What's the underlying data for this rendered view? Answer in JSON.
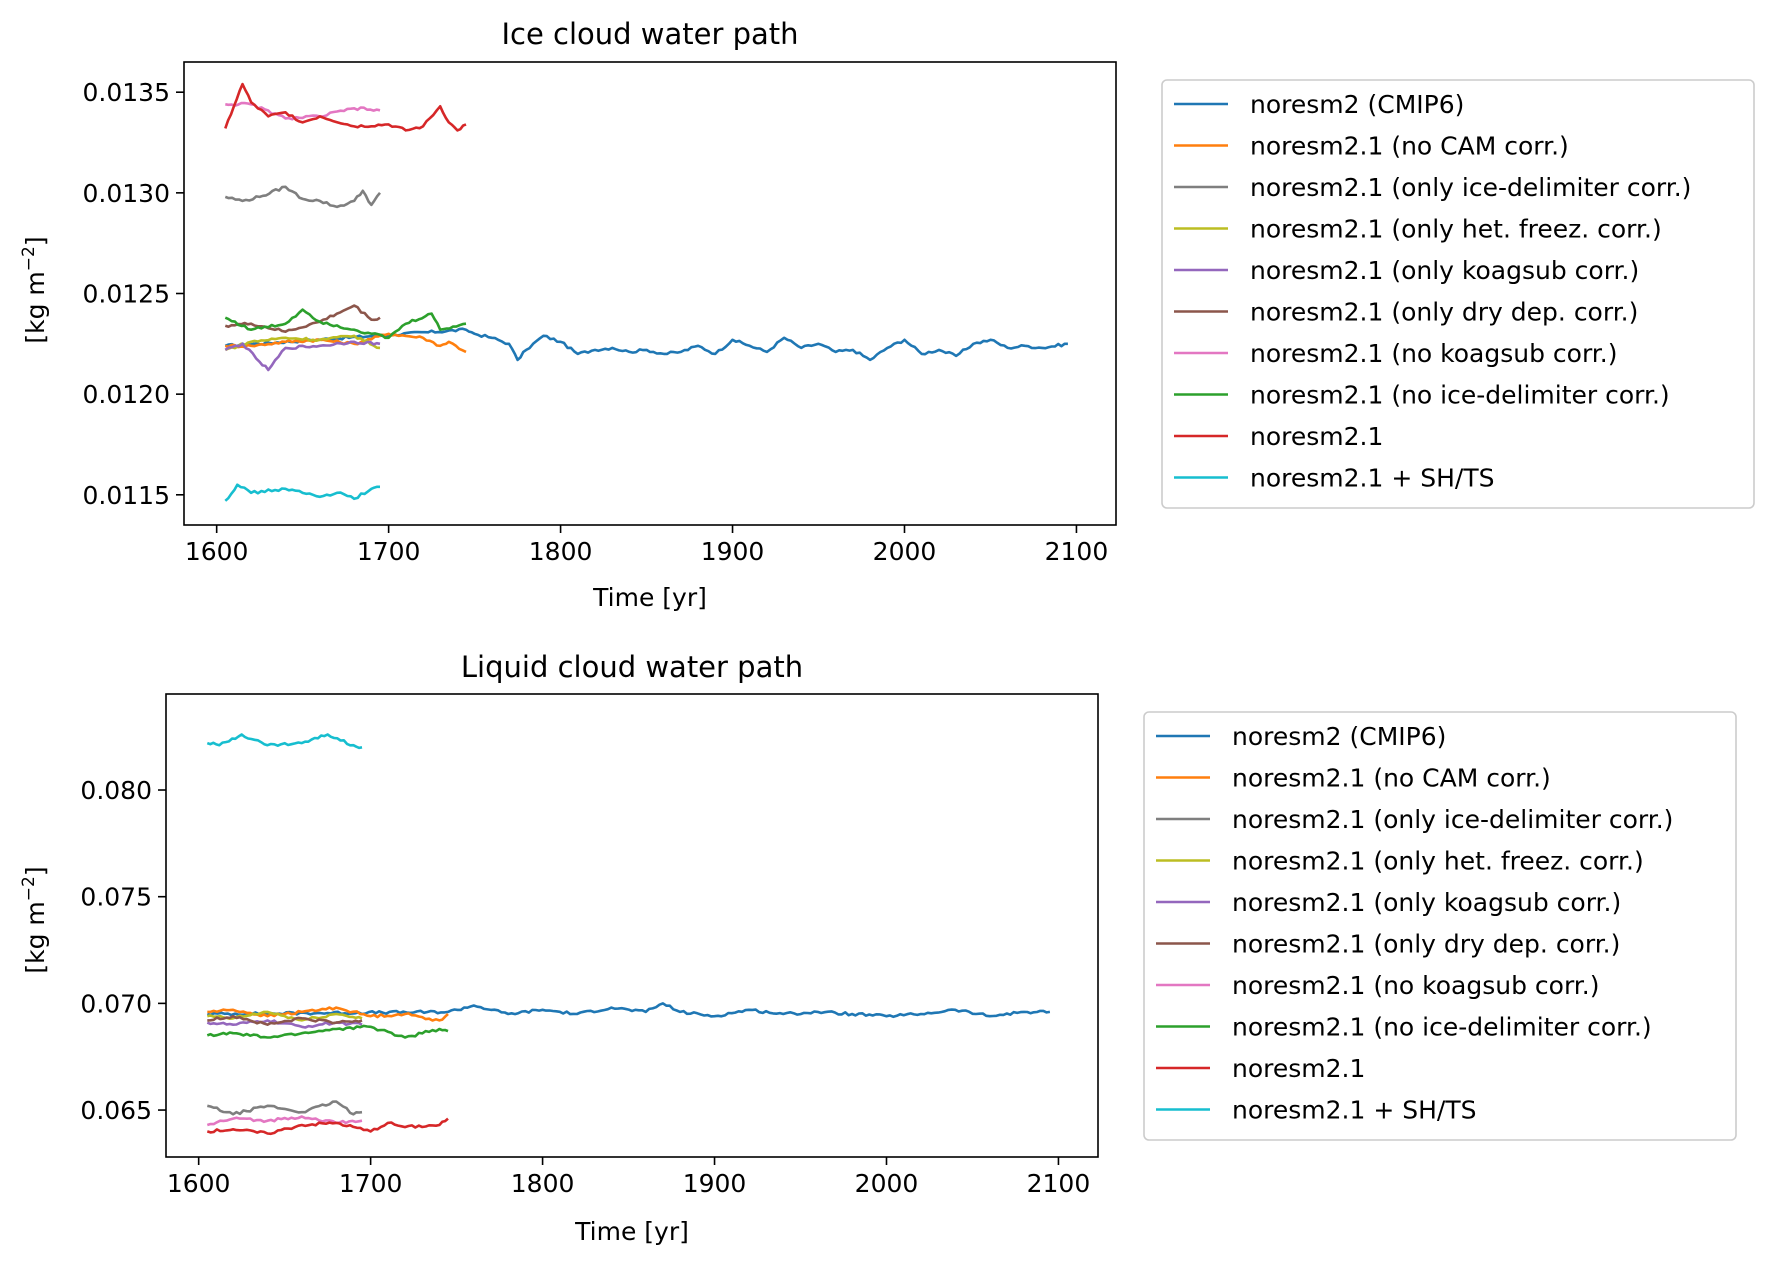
{
  "chart_data": [
    {
      "type": "line",
      "title": "Ice cloud water path",
      "xlabel": "Time [yr]",
      "ylabel": "[kg m$^{-2}$]",
      "ylabel_text": "[kg m",
      "ylabel_sup": "−2",
      "ylabel_close": "]",
      "xlim": [
        1581,
        2123
      ],
      "ylim": [
        0.01135,
        0.01365
      ],
      "xticks": [
        1600,
        1700,
        1800,
        1900,
        2000,
        2100
      ],
      "xtick_labels": [
        "1600",
        "1700",
        "1800",
        "1900",
        "2000",
        "2100"
      ],
      "yticks": [
        0.0115,
        0.012,
        0.0125,
        0.013,
        0.0135
      ],
      "ytick_labels": [
        "0.0115",
        "0.0120",
        "0.0125",
        "0.0130",
        "0.0135"
      ],
      "grid": false,
      "legend_position": "outside-right",
      "series": [
        {
          "name": "noresm2 (CMIP6)",
          "color": "#1f77b4",
          "x": [
            1605,
            1745,
            1750,
            1760,
            1770,
            1775,
            1780,
            1790,
            1800,
            1810,
            1820,
            1830,
            1840,
            1850,
            1860,
            1870,
            1880,
            1890,
            1900,
            1910,
            1920,
            1930,
            1940,
            1950,
            1960,
            1970,
            1980,
            1990,
            2000,
            2010,
            2020,
            2030,
            2040,
            2050,
            2060,
            2070,
            2080,
            2095
          ],
          "y": [
            0.01224,
            0.01232,
            0.0123,
            0.01228,
            0.01225,
            0.01217,
            0.01222,
            0.01229,
            0.01226,
            0.0122,
            0.01222,
            0.01223,
            0.01221,
            0.01222,
            0.0122,
            0.01221,
            0.01224,
            0.0122,
            0.01227,
            0.01224,
            0.01221,
            0.01228,
            0.01223,
            0.01225,
            0.01221,
            0.01222,
            0.01217,
            0.01223,
            0.01227,
            0.0122,
            0.01222,
            0.01219,
            0.01225,
            0.01227,
            0.01223,
            0.01224,
            0.01223,
            0.01225
          ]
        },
        {
          "name": "noresm2.1 (no CAM corr.)",
          "color": "#ff7f0e",
          "x": [
            1605,
            1620,
            1640,
            1660,
            1680,
            1700,
            1720,
            1730,
            1735,
            1745
          ],
          "y": [
            0.01224,
            0.01224,
            0.01226,
            0.01227,
            0.01225,
            0.0123,
            0.01228,
            0.01224,
            0.01226,
            0.01221
          ]
        },
        {
          "name": "noresm2.1 (only ice-delimiter corr.)",
          "color": "#7f7f7f",
          "x": [
            1605,
            1615,
            1625,
            1640,
            1650,
            1660,
            1670,
            1680,
            1685,
            1690,
            1695
          ],
          "y": [
            0.01298,
            0.01296,
            0.01298,
            0.01303,
            0.01297,
            0.01296,
            0.01293,
            0.01296,
            0.01301,
            0.01294,
            0.013
          ]
        },
        {
          "name": "noresm2.1 (only het. freez. corr.)",
          "color": "#bcbd22",
          "x": [
            1605,
            1620,
            1640,
            1660,
            1680,
            1695
          ],
          "y": [
            0.01222,
            0.01226,
            0.01228,
            0.01227,
            0.01229,
            0.01223
          ]
        },
        {
          "name": "noresm2.1 (only koagsub corr.)",
          "color": "#9467bd",
          "x": [
            1605,
            1615,
            1625,
            1630,
            1640,
            1660,
            1680,
            1695
          ],
          "y": [
            0.01222,
            0.01225,
            0.01216,
            0.01212,
            0.01223,
            0.01224,
            0.01226,
            0.01225
          ]
        },
        {
          "name": "noresm2.1 (only dry dep. corr.)",
          "color": "#8c564b",
          "x": [
            1605,
            1620,
            1640,
            1660,
            1670,
            1680,
            1690,
            1695
          ],
          "y": [
            0.01234,
            0.01235,
            0.01231,
            0.01236,
            0.0124,
            0.01244,
            0.01237,
            0.01238
          ]
        },
        {
          "name": "noresm2.1 (no koagsub corr.)",
          "color": "#e377c2",
          "x": [
            1605,
            1620,
            1640,
            1660,
            1680,
            1695
          ],
          "y": [
            0.01344,
            0.01344,
            0.01337,
            0.01338,
            0.01342,
            0.01341
          ]
        },
        {
          "name": "noresm2.1 (no ice-delimiter corr.)",
          "color": "#2ca02c",
          "x": [
            1605,
            1620,
            1640,
            1650,
            1660,
            1680,
            1700,
            1710,
            1725,
            1730,
            1745
          ],
          "y": [
            0.01238,
            0.01232,
            0.01235,
            0.01242,
            0.01236,
            0.01232,
            0.01228,
            0.01235,
            0.0124,
            0.01232,
            0.01235
          ]
        },
        {
          "name": "noresm2.1",
          "color": "#d62728",
          "x": [
            1605,
            1610,
            1615,
            1620,
            1630,
            1640,
            1650,
            1660,
            1680,
            1700,
            1710,
            1720,
            1730,
            1735,
            1740,
            1745
          ],
          "y": [
            0.01332,
            0.01343,
            0.01354,
            0.01345,
            0.01338,
            0.0134,
            0.01335,
            0.01338,
            0.01333,
            0.01334,
            0.01331,
            0.01333,
            0.01343,
            0.01335,
            0.01331,
            0.01334
          ]
        },
        {
          "name": "noresm2.1 + SH/TS",
          "color": "#17becf",
          "x": [
            1605,
            1612,
            1620,
            1640,
            1660,
            1670,
            1680,
            1690,
            1695
          ],
          "y": [
            0.01147,
            0.01155,
            0.01151,
            0.01153,
            0.01149,
            0.01151,
            0.01148,
            0.01153,
            0.01154
          ]
        }
      ]
    },
    {
      "type": "line",
      "title": "Liquid cloud water path",
      "xlabel": "Time [yr]",
      "ylabel": "[kg m$^{-2}$]",
      "ylabel_text": "[kg m",
      "ylabel_sup": "−2",
      "ylabel_close": "]",
      "xlim": [
        1581,
        2123
      ],
      "ylim": [
        0.0628,
        0.0845
      ],
      "xticks": [
        1600,
        1700,
        1800,
        1900,
        2000,
        2100
      ],
      "xtick_labels": [
        "1600",
        "1700",
        "1800",
        "1900",
        "2000",
        "2100"
      ],
      "yticks": [
        0.065,
        0.07,
        0.075,
        0.08
      ],
      "ytick_labels": [
        "0.065",
        "0.070",
        "0.075",
        "0.080"
      ],
      "grid": false,
      "legend_position": "outside-right",
      "series": [
        {
          "name": "noresm2 (CMIP6)",
          "color": "#1f77b4",
          "x": [
            1605,
            1745,
            1760,
            1780,
            1800,
            1820,
            1840,
            1860,
            1870,
            1880,
            1900,
            1920,
            1940,
            1960,
            1980,
            2000,
            2020,
            2040,
            2060,
            2080,
            2095
          ],
          "y": [
            0.0695,
            0.0696,
            0.0699,
            0.0695,
            0.0697,
            0.0695,
            0.0698,
            0.0696,
            0.07,
            0.0696,
            0.0694,
            0.0697,
            0.0695,
            0.0696,
            0.0695,
            0.0694,
            0.0695,
            0.0697,
            0.0694,
            0.0696,
            0.0696
          ]
        },
        {
          "name": "noresm2.1 (no CAM corr.)",
          "color": "#ff7f0e",
          "x": [
            1605,
            1620,
            1640,
            1660,
            1680,
            1700,
            1720,
            1740,
            1745
          ],
          "y": [
            0.0696,
            0.0697,
            0.0694,
            0.0696,
            0.0698,
            0.0694,
            0.0695,
            0.0692,
            0.0695
          ]
        },
        {
          "name": "noresm2.1 (only ice-delimiter corr.)",
          "color": "#7f7f7f",
          "x": [
            1605,
            1620,
            1640,
            1660,
            1680,
            1690,
            1695
          ],
          "y": [
            0.0652,
            0.0648,
            0.0652,
            0.0649,
            0.0654,
            0.0648,
            0.0649
          ]
        },
        {
          "name": "noresm2.1 (only het. freez. corr.)",
          "color": "#bcbd22",
          "x": [
            1605,
            1620,
            1640,
            1660,
            1680,
            1695
          ],
          "y": [
            0.0694,
            0.0693,
            0.0696,
            0.0692,
            0.0695,
            0.0693
          ]
        },
        {
          "name": "noresm2.1 (only koagsub corr.)",
          "color": "#9467bd",
          "x": [
            1605,
            1620,
            1640,
            1660,
            1680,
            1695
          ],
          "y": [
            0.0691,
            0.069,
            0.0692,
            0.0689,
            0.0691,
            0.069
          ]
        },
        {
          "name": "noresm2.1 (only dry dep. corr.)",
          "color": "#8c564b",
          "x": [
            1605,
            1620,
            1640,
            1660,
            1680,
            1695
          ],
          "y": [
            0.0692,
            0.0694,
            0.069,
            0.0693,
            0.0691,
            0.0692
          ]
        },
        {
          "name": "noresm2.1 (no koagsub corr.)",
          "color": "#e377c2",
          "x": [
            1605,
            1620,
            1640,
            1660,
            1680,
            1695
          ],
          "y": [
            0.0643,
            0.0646,
            0.0645,
            0.0647,
            0.0644,
            0.0645
          ]
        },
        {
          "name": "noresm2.1 (no ice-delimiter corr.)",
          "color": "#2ca02c",
          "x": [
            1605,
            1620,
            1640,
            1660,
            1680,
            1700,
            1720,
            1740,
            1745
          ],
          "y": [
            0.0685,
            0.0686,
            0.0684,
            0.0686,
            0.0688,
            0.0689,
            0.0684,
            0.0688,
            0.0687
          ]
        },
        {
          "name": "noresm2.1",
          "color": "#d62728",
          "x": [
            1605,
            1620,
            1640,
            1660,
            1680,
            1700,
            1710,
            1720,
            1740,
            1745
          ],
          "y": [
            0.064,
            0.0641,
            0.0639,
            0.0643,
            0.0644,
            0.064,
            0.0644,
            0.0642,
            0.0643,
            0.0646
          ]
        },
        {
          "name": "noresm2.1 + SH/TS",
          "color": "#17becf",
          "x": [
            1605,
            1612,
            1625,
            1640,
            1660,
            1675,
            1690,
            1695
          ],
          "y": [
            0.0822,
            0.0821,
            0.0826,
            0.0821,
            0.0822,
            0.0826,
            0.0821,
            0.082
          ]
        }
      ]
    }
  ]
}
